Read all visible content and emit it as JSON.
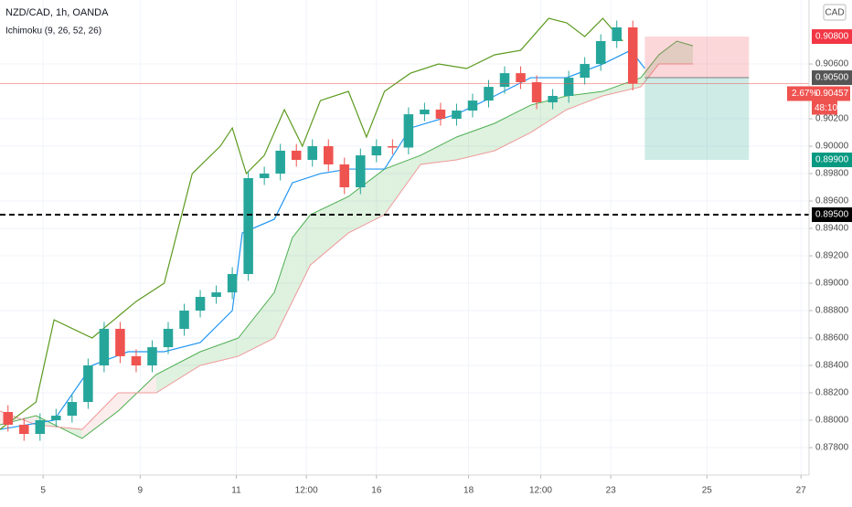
{
  "chart_data": {
    "type": "candlestick",
    "title": "NZD/CAD, 1h, OANDA",
    "subtitle": "Ichimoku (9, 26, 52, 26)",
    "currency": "CAD",
    "up_color": "#26a69a",
    "down_color": "#ef5350",
    "xlim": [
      0,
      404
    ],
    "ylim": [
      0.876,
      0.91067
    ],
    "grid": true,
    "xticks": [
      {
        "value": 21.5,
        "label": "5"
      },
      {
        "value": 70,
        "label": "9"
      },
      {
        "value": 118,
        "label": "11"
      },
      {
        "value": 153,
        "label": "12:00"
      },
      {
        "value": 188,
        "label": "16"
      },
      {
        "value": 234,
        "label": "18"
      },
      {
        "value": 270,
        "label": "12:00"
      },
      {
        "value": 305,
        "label": "23"
      },
      {
        "value": 353,
        "label": "25"
      },
      {
        "value": 400,
        "label": "27"
      }
    ],
    "yticks": [
      {
        "value": 0.878,
        "label": "0.87800"
      },
      {
        "value": 0.88,
        "label": "0.88000"
      },
      {
        "value": 0.882,
        "label": "0.88200"
      },
      {
        "value": 0.884,
        "label": "0.88400"
      },
      {
        "value": 0.886,
        "label": "0.88600"
      },
      {
        "value": 0.888,
        "label": "0.88800"
      },
      {
        "value": 0.89,
        "label": "0.89000"
      },
      {
        "value": 0.892,
        "label": "0.89200"
      },
      {
        "value": 0.894,
        "label": "0.89400"
      },
      {
        "value": 0.896,
        "label": "0.89600"
      },
      {
        "value": 0.898,
        "label": "0.89800"
      },
      {
        "value": 0.9,
        "label": "0.90000"
      },
      {
        "value": 0.902,
        "label": "0.90200"
      },
      {
        "value": 0.906,
        "label": "0.90600"
      }
    ],
    "x": [
      4,
      12,
      20,
      28,
      36,
      44,
      52,
      60,
      68,
      76,
      84,
      92,
      100,
      108,
      116,
      124,
      132,
      140,
      148,
      156,
      164,
      172,
      180,
      188,
      196,
      204,
      212,
      220,
      228,
      236,
      244,
      252,
      260,
      268,
      276,
      284,
      292,
      300,
      308,
      316
    ],
    "open": [
      0.8806,
      0.87967,
      0.879,
      0.88,
      0.88033,
      0.88133,
      0.884,
      0.88667,
      0.88467,
      0.884,
      0.88533,
      0.88667,
      0.888,
      0.889,
      0.88933,
      0.89067,
      0.89767,
      0.898,
      0.89967,
      0.899,
      0.9,
      0.89867,
      0.897,
      0.89933,
      0.9,
      0.8999,
      0.90233,
      0.90267,
      0.902,
      0.9026,
      0.90333,
      0.90433,
      0.90533,
      0.90467,
      0.9032,
      0.90367,
      0.905,
      0.906,
      0.90767,
      0.90867
    ],
    "high": [
      0.8811,
      0.88017,
      0.8805,
      0.88083,
      0.88183,
      0.8845,
      0.88717,
      0.88717,
      0.88517,
      0.88583,
      0.88717,
      0.8885,
      0.8895,
      0.88983,
      0.89117,
      0.89817,
      0.8985,
      0.90017,
      0.90017,
      0.9005,
      0.9005,
      0.89917,
      0.89983,
      0.9005,
      0.9005,
      0.90283,
      0.90317,
      0.90317,
      0.9031,
      0.90383,
      0.90483,
      0.90583,
      0.90583,
      0.90517,
      0.90417,
      0.9055,
      0.9065,
      0.90817,
      0.90917,
      0.90917
    ],
    "low": [
      0.87917,
      0.8785,
      0.8785,
      0.8795,
      0.87983,
      0.88083,
      0.8835,
      0.88417,
      0.8835,
      0.8835,
      0.88483,
      0.88617,
      0.8875,
      0.8885,
      0.88883,
      0.89017,
      0.89717,
      0.8975,
      0.8985,
      0.8985,
      0.89817,
      0.8965,
      0.8965,
      0.89883,
      0.8994,
      0.8994,
      0.90183,
      0.9015,
      0.9015,
      0.9021,
      0.90283,
      0.90383,
      0.90417,
      0.9027,
      0.9027,
      0.90317,
      0.9045,
      0.9055,
      0.90717,
      0.90407
    ],
    "close": [
      0.87967,
      0.879,
      0.88,
      0.88033,
      0.88133,
      0.884,
      0.88667,
      0.88467,
      0.884,
      0.88533,
      0.88667,
      0.888,
      0.889,
      0.88933,
      0.89067,
      0.89767,
      0.898,
      0.89967,
      0.899,
      0.9,
      0.89867,
      0.897,
      0.89933,
      0.9,
      0.8999,
      0.90233,
      0.90267,
      0.902,
      0.9026,
      0.90333,
      0.90433,
      0.90533,
      0.90467,
      0.9032,
      0.90367,
      0.905,
      0.906,
      0.90767,
      0.90867,
      0.90457
    ],
    "cloud": {
      "up_color": "#4caf50",
      "down_color": "#ef9a9a",
      "x": [
        0,
        18,
        41,
        59,
        78,
        100,
        119,
        137,
        146,
        155,
        174,
        192,
        210,
        228,
        247,
        265,
        283,
        301,
        320,
        329,
        338,
        346
      ],
      "span_a": [
        0.87967,
        0.88033,
        0.87867,
        0.88067,
        0.88333,
        0.885,
        0.886,
        0.88933,
        0.89333,
        0.895,
        0.89633,
        0.89833,
        0.89933,
        0.90067,
        0.90167,
        0.903,
        0.90367,
        0.904,
        0.905,
        0.90667,
        0.90767,
        0.90733
      ],
      "span_b": [
        0.88067,
        0.87967,
        0.87933,
        0.882,
        0.882,
        0.884,
        0.88467,
        0.886,
        0.88867,
        0.89133,
        0.89367,
        0.895,
        0.89867,
        0.899,
        0.89967,
        0.901,
        0.90267,
        0.90367,
        0.90433,
        0.906,
        0.906,
        0.906
      ]
    },
    "lines": [
      {
        "color": "#2196f3",
        "x": [
          0,
          27,
          46,
          64,
          82,
          100,
          116,
          121,
          137,
          146,
          160,
          174,
          192,
          205,
          228,
          247,
          265,
          283,
          301,
          315,
          322
        ],
        "values": [
          0.87933,
          0.88,
          0.884,
          0.885,
          0.885,
          0.88567,
          0.888,
          0.89367,
          0.89467,
          0.89733,
          0.898,
          0.89833,
          0.89833,
          0.90133,
          0.90233,
          0.90367,
          0.905,
          0.905,
          0.906,
          0.907,
          0.90567
        ]
      },
      {
        "color": "#5b9a1e",
        "x": [
          0,
          18,
          27,
          46,
          68,
          82,
          96,
          110,
          116,
          123,
          132,
          142,
          151,
          160,
          174,
          183,
          192,
          205,
          219,
          233,
          247,
          260,
          274,
          283,
          292,
          301,
          311
        ],
        "values": [
          0.87933,
          0.88133,
          0.88733,
          0.886,
          0.88867,
          0.89,
          0.898,
          0.9,
          0.90133,
          0.898,
          0.89933,
          0.90267,
          0.9,
          0.90333,
          0.904,
          0.90067,
          0.904,
          0.90533,
          0.906,
          0.90567,
          0.90667,
          0.907,
          0.90933,
          0.909,
          0.908,
          0.90933,
          0.90767
        ]
      }
    ],
    "position": {
      "start": 322,
      "end": 374,
      "stop": {
        "value": 0.908,
        "label": "0.90800"
      },
      "entry": {
        "value": 0.905,
        "label": "0.90500"
      },
      "target": {
        "value": 0.899,
        "label": "0.89900"
      }
    },
    "hline": {
      "value": 0.895,
      "label": "0.89500"
    },
    "last_price": {
      "value": 0.90457,
      "label": "0.90457",
      "change": "2.67%",
      "countdown": "48:10"
    }
  }
}
